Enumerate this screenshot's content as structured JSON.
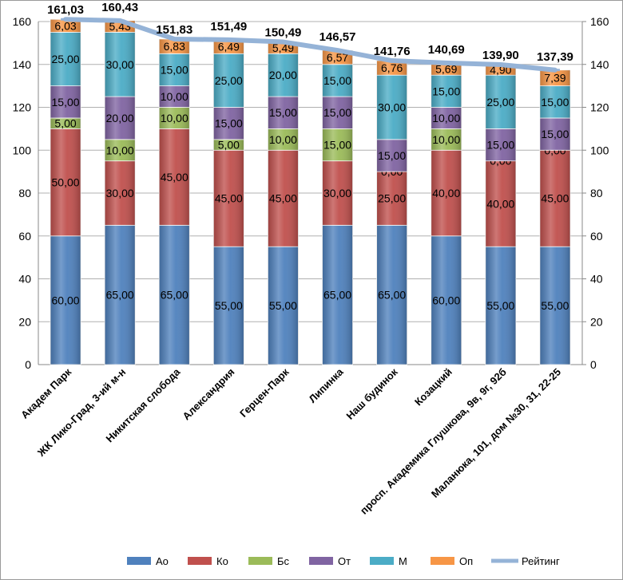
{
  "chart_data": {
    "type": "bar",
    "stacked": true,
    "categories": [
      "Академ Парк",
      "ЖК Лико-Град, 3-ий м-н",
      "Никитская слобода",
      "Александрия",
      "Герцен-Парк",
      "Липинка",
      "Наш будинок",
      "Козацкий",
      "просп. Академика Глушкова, 9в, 9г, 92б",
      "Маланюка, 101, дом №30, 31, 22-25"
    ],
    "series": [
      {
        "name": "Ао",
        "color": "#4f81bd",
        "values": [
          60,
          65,
          65,
          55,
          55,
          65,
          65,
          60,
          55,
          55
        ],
        "labels": [
          "60,00",
          "65,00",
          "65,00",
          "55,00",
          "55,00",
          "65,00",
          "65,00",
          "60,00",
          "55,00",
          "55,00"
        ]
      },
      {
        "name": "Ко",
        "color": "#c0504d",
        "values": [
          50,
          30,
          45,
          45,
          45,
          30,
          25,
          40,
          40,
          45
        ],
        "labels": [
          "50,00",
          "30,00",
          "45,00",
          "45,00",
          "45,00",
          "30,00",
          "25,00",
          "40,00",
          "40,00",
          "45,00"
        ]
      },
      {
        "name": "Бс",
        "color": "#9bbb59",
        "values": [
          5,
          10,
          10,
          5,
          10,
          15,
          0,
          10,
          0,
          0
        ],
        "labels": [
          "5,00",
          "10,00",
          "10,00",
          "5,00",
          "10,00",
          "15,00",
          "0,00",
          "10,00",
          "0,00",
          "0,00"
        ]
      },
      {
        "name": "От",
        "color": "#8064a2",
        "values": [
          15,
          20,
          10,
          15,
          15,
          15,
          15,
          10,
          15,
          15
        ],
        "labels": [
          "15,00",
          "20,00",
          "10,00",
          "15,00",
          "15,00",
          "15,00",
          "15,00",
          "10,00",
          "15,00",
          "15,00"
        ]
      },
      {
        "name": "М",
        "color": "#4bacc6",
        "values": [
          25,
          30,
          15,
          25,
          20,
          15,
          30,
          15,
          25,
          15
        ],
        "labels": [
          "25,00",
          "30,00",
          "15,00",
          "25,00",
          "20,00",
          "15,00",
          "30,00",
          "15,00",
          "25,00",
          "15,00"
        ]
      },
      {
        "name": "Оп",
        "color": "#f79646",
        "values": [
          6.03,
          5.43,
          6.83,
          6.49,
          5.49,
          6.57,
          6.76,
          5.69,
          4.9,
          7.39
        ],
        "labels": [
          "6,03",
          "5,43",
          "6,83",
          "6,49",
          "5,49",
          "6,57",
          "6,76",
          "5,69",
          "4,90",
          "7,39"
        ]
      }
    ],
    "line_series": {
      "name": "Рейтинг",
      "color": "#95b3d7",
      "axis": "secondary",
      "values": [
        161.03,
        160.43,
        151.83,
        151.49,
        150.49,
        146.57,
        141.76,
        140.69,
        139.9,
        137.39
      ],
      "labels": [
        "161,03",
        "160,43",
        "151,83",
        "151,49",
        "150,49",
        "146,57",
        "141,76",
        "140,69",
        "139,90",
        "137,39"
      ]
    },
    "ylim": [
      0,
      160
    ],
    "y_ticks": [
      "0",
      "20",
      "40",
      "60",
      "80",
      "100",
      "120",
      "140",
      "160"
    ],
    "y2lim": [
      0,
      160
    ],
    "y2_ticks": [
      "0",
      "20",
      "40",
      "60",
      "80",
      "100",
      "120",
      "140",
      "160"
    ],
    "legend_position": "bottom"
  }
}
